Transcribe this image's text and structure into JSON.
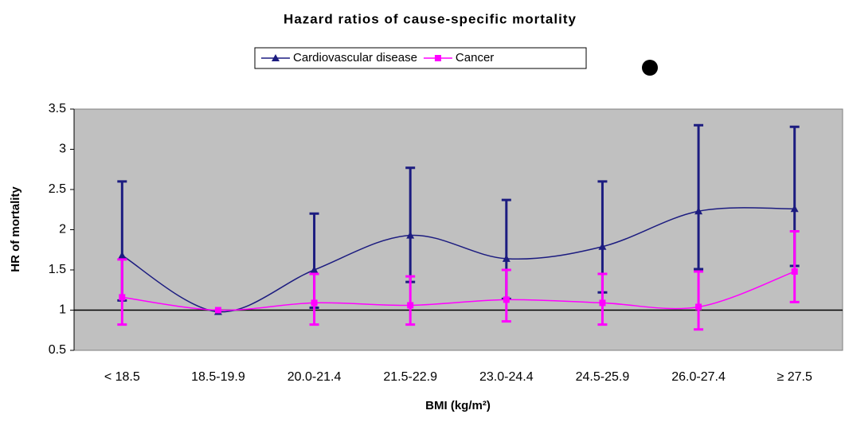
{
  "chart_data": {
    "type": "line",
    "title": "Hazard ratios of cause-specific mortality",
    "x_label": "BMI (kg/m²)",
    "y_label": "HR of mortality",
    "categories": [
      "< 18.5",
      "18.5-19.9",
      "20.0-21.4",
      "21.5-22.9",
      "23.0-24.4",
      "24.5-25.9",
      "26.0-27.4",
      "≥ 27.5"
    ],
    "series": [
      {
        "name": "Cardiovascular disease",
        "color": "#1c1c80",
        "marker": "triangle",
        "values": [
          1.68,
          0.98,
          1.5,
          1.93,
          1.64,
          1.79,
          2.23,
          2.26
        ],
        "lower": [
          1.12,
          null,
          1.03,
          1.35,
          1.14,
          1.22,
          1.51,
          1.55
        ],
        "upper": [
          2.6,
          null,
          2.2,
          2.77,
          2.37,
          2.6,
          3.3,
          3.28
        ]
      },
      {
        "name": "Cancer",
        "color": "#ff00ff",
        "marker": "square",
        "values": [
          1.16,
          1.0,
          1.09,
          1.06,
          1.13,
          1.09,
          1.04,
          1.48
        ],
        "lower": [
          0.82,
          null,
          0.82,
          0.82,
          0.86,
          0.82,
          0.76,
          1.1
        ],
        "upper": [
          1.63,
          null,
          1.45,
          1.42,
          1.5,
          1.45,
          1.48,
          1.98
        ]
      }
    ],
    "ylim": [
      0.5,
      3.5
    ],
    "yticks": [
      0.5,
      1,
      1.5,
      2,
      2.5,
      3,
      3.5
    ],
    "reference_line": 1,
    "grid": false,
    "legend": "top",
    "background": "#c0c0c0"
  }
}
